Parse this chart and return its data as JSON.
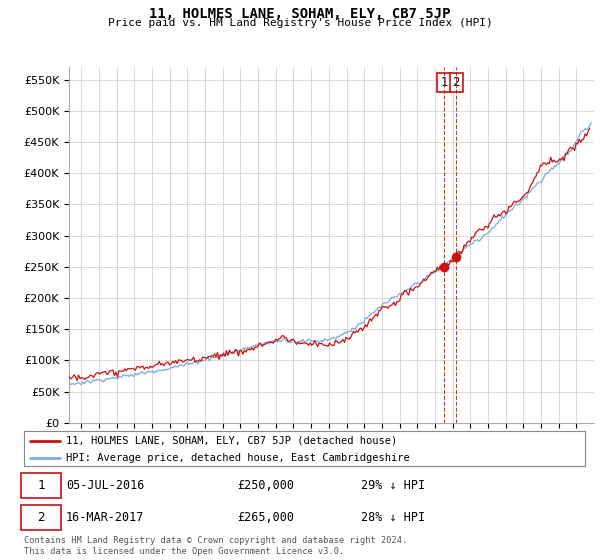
{
  "title": "11, HOLMES LANE, SOHAM, ELY, CB7 5JP",
  "subtitle": "Price paid vs. HM Land Registry's House Price Index (HPI)",
  "ylabel_ticks": [
    "£0",
    "£50K",
    "£100K",
    "£150K",
    "£200K",
    "£250K",
    "£300K",
    "£350K",
    "£400K",
    "£450K",
    "£500K",
    "£550K"
  ],
  "ytick_values": [
    0,
    50000,
    100000,
    150000,
    200000,
    250000,
    300000,
    350000,
    400000,
    450000,
    500000,
    550000
  ],
  "ylim": [
    0,
    570000
  ],
  "xlim_start": 1995.3,
  "xlim_end": 2025.0,
  "hpi_color": "#7aabdb",
  "price_color": "#cc1111",
  "vline_color": "#cc1111",
  "sale1_date": 2016.51,
  "sale1_price": 250000,
  "sale2_date": 2017.21,
  "sale2_price": 265000,
  "legend_label_price": "11, HOLMES LANE, SOHAM, ELY, CB7 5JP (detached house)",
  "legend_label_hpi": "HPI: Average price, detached house, East Cambridgeshire",
  "background_color": "#ffffff",
  "grid_color": "#cccccc",
  "footnote": "Contains HM Land Registry data © Crown copyright and database right 2024.\nThis data is licensed under the Open Government Licence v3.0."
}
